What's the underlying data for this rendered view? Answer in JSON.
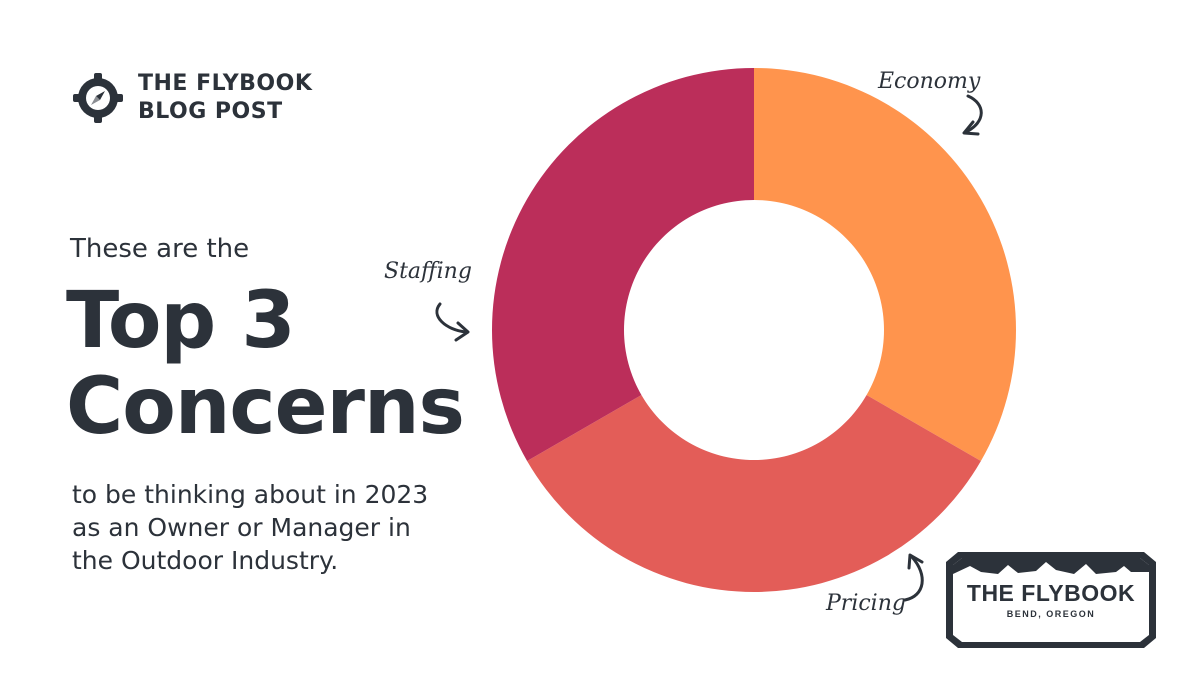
{
  "brand": {
    "line1": "THE FLYBOOK",
    "line2": "BLOG POST",
    "icon": "compass-icon"
  },
  "intro": "These are the",
  "headline": {
    "line1": "Top 3",
    "line2": "Concerns"
  },
  "subtext": {
    "line1": "to be thinking about in 2023",
    "line2": "as an Owner or Manager in",
    "line3": "the Outdoor Industry."
  },
  "chart_data": {
    "type": "pie",
    "donut": true,
    "slices": [
      {
        "label": "Economy",
        "value": 33.3,
        "color": "#ff944d"
      },
      {
        "label": "Pricing",
        "value": 33.3,
        "color": "#e35d58"
      },
      {
        "label": "Staffing",
        "value": 33.3,
        "color": "#bb2e5a"
      }
    ],
    "title": ""
  },
  "badge": {
    "title": "THE FLYBOOK",
    "subtitle": "BEND, OREGON"
  }
}
